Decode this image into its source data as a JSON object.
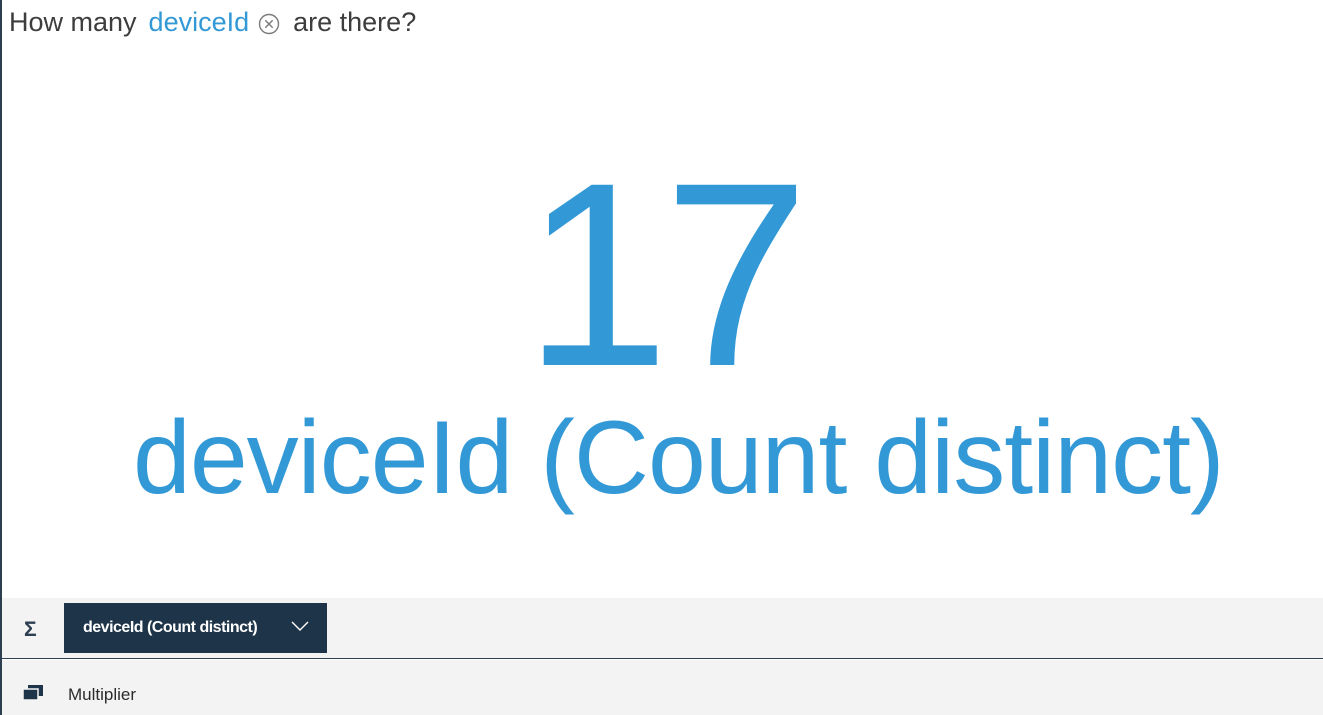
{
  "question": {
    "prefix": "How many",
    "token": "deviceId",
    "suffix": "are there?"
  },
  "result": {
    "value": "17",
    "label": "deviceId (Count distinct)"
  },
  "toolbar": {
    "measure_label": "deviceId (Count distinct)"
  },
  "multiplier": {
    "label": "Multiplier"
  },
  "icons": {
    "clear": "close-circle-icon",
    "sigma": "sigma-icon",
    "dropdown": "chevron-down-icon",
    "multiplier": "stacked-windows-icon"
  },
  "colors": {
    "accent": "#3399d6",
    "dark": "#1e3448",
    "text": "#3d3d3d",
    "panel": "#f3f3f3"
  }
}
